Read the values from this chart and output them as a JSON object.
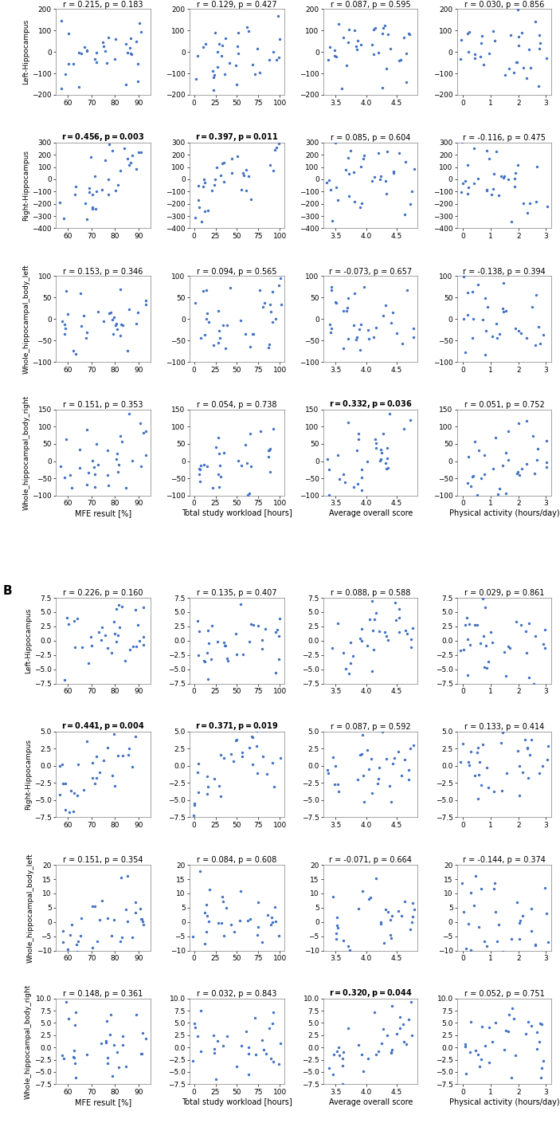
{
  "figure_bg": "#ffffff",
  "dot_color": "#4472c4",
  "dot_size": 6,
  "bold_threshold": 0.05,
  "rows_A": [
    {
      "ylabel": "Left-Hippocampus",
      "ylim": [
        -200,
        200
      ],
      "yticks": [
        -200,
        -100,
        0,
        100,
        200
      ]
    },
    {
      "ylabel": "Right-Hippocampus",
      "ylim": [
        -400,
        300
      ],
      "yticks": [
        -400,
        -300,
        -200,
        -100,
        0,
        100,
        200,
        300
      ]
    },
    {
      "ylabel": "Whole_hippocampal_body_left",
      "ylim": [
        -100,
        100
      ],
      "yticks": [
        -100,
        -50,
        0,
        50,
        100
      ]
    },
    {
      "ylabel": "Whole_hippocampal_body_right",
      "ylim": [
        -100,
        150
      ],
      "yticks": [
        -100,
        -50,
        0,
        50,
        100,
        150
      ]
    }
  ],
  "rows_B": [
    {
      "ylabel": "Left-Hippocampus",
      "ylim": [
        -7.5,
        7.5
      ],
      "yticks": [
        -7.5,
        -5.0,
        -2.5,
        0.0,
        2.5,
        5.0,
        7.5
      ]
    },
    {
      "ylabel": "Right-Hippocampus",
      "ylim": [
        -7.5,
        5.0
      ],
      "yticks": [
        -7.5,
        -5.0,
        -2.5,
        0.0,
        2.5,
        5.0
      ]
    },
    {
      "ylabel": "Whole_hippocampal_body_left",
      "ylim": [
        -10,
        20
      ],
      "yticks": [
        -10,
        -5,
        0,
        5,
        10,
        15,
        20
      ]
    },
    {
      "ylabel": "Whole_hippocampal_body_right",
      "ylim": [
        -7.5,
        10.0
      ],
      "yticks": [
        -7.5,
        -5.0,
        -2.5,
        0.0,
        2.5,
        5.0,
        7.5,
        10.0
      ]
    }
  ],
  "cols": [
    {
      "xlabel": "MFE result [%]",
      "xlim": [
        55,
        95
      ],
      "xticks": [
        60,
        70,
        80,
        90
      ]
    },
    {
      "xlabel": "Total study workload [hours]",
      "xlim": [
        -5,
        105
      ],
      "xticks": [
        0,
        25,
        50,
        75,
        100
      ]
    },
    {
      "xlabel": "Average overall score",
      "xlim": [
        3.3,
        4.85
      ],
      "xticks": [
        3.5,
        4.0,
        4.5
      ]
    },
    {
      "xlabel": "Physical activity (hours/day)",
      "xlim": [
        -0.2,
        3.2
      ],
      "xticks": [
        0,
        1,
        2,
        3
      ]
    }
  ],
  "correlations_A": [
    [
      {
        "r": 0.215,
        "p": 0.183
      },
      {
        "r": 0.129,
        "p": 0.427
      },
      {
        "r": 0.087,
        "p": 0.595
      },
      {
        "r": 0.03,
        "p": 0.856
      }
    ],
    [
      {
        "r": 0.456,
        "p": 0.003
      },
      {
        "r": 0.397,
        "p": 0.011
      },
      {
        "r": 0.085,
        "p": 0.604
      },
      {
        "r": -0.116,
        "p": 0.475
      }
    ],
    [
      {
        "r": 0.153,
        "p": 0.346
      },
      {
        "r": 0.094,
        "p": 0.565
      },
      {
        "r": -0.073,
        "p": 0.657
      },
      {
        "r": -0.138,
        "p": 0.394
      }
    ],
    [
      {
        "r": 0.151,
        "p": 0.353
      },
      {
        "r": 0.054,
        "p": 0.738
      },
      {
        "r": 0.332,
        "p": 0.036
      },
      {
        "r": 0.051,
        "p": 0.752
      }
    ]
  ],
  "correlations_B": [
    [
      {
        "r": 0.226,
        "p": 0.16
      },
      {
        "r": 0.135,
        "p": 0.407
      },
      {
        "r": 0.088,
        "p": 0.588
      },
      {
        "r": 0.029,
        "p": 0.861
      }
    ],
    [
      {
        "r": 0.441,
        "p": 0.004
      },
      {
        "r": 0.371,
        "p": 0.019
      },
      {
        "r": 0.087,
        "p": 0.592
      },
      {
        "r": 0.133,
        "p": 0.414
      }
    ],
    [
      {
        "r": 0.151,
        "p": 0.354
      },
      {
        "r": 0.084,
        "p": 0.608
      },
      {
        "r": -0.071,
        "p": 0.664
      },
      {
        "r": -0.144,
        "p": 0.374
      }
    ],
    [
      {
        "r": 0.148,
        "p": 0.361
      },
      {
        "r": 0.032,
        "p": 0.843
      },
      {
        "r": 0.32,
        "p": 0.044
      },
      {
        "r": 0.052,
        "p": 0.751
      }
    ]
  ]
}
